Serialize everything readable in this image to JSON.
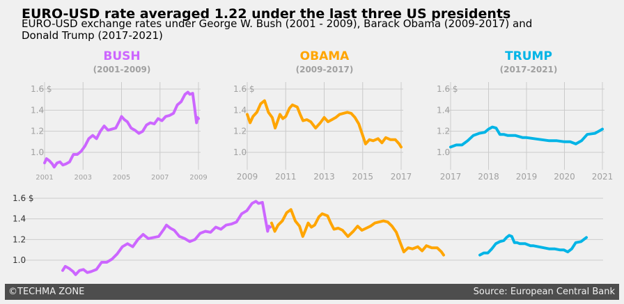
{
  "title": "EURO-USD rate averaged 1.22 under the last three US presidents",
  "subtitle": "EURO-USD exchange rates under George W. Bush (2001 - 2009), Barack Obama (2009-2017) and Donald Trump (2017-2021)",
  "footer": {
    "left": "©TECHMA ZONE",
    "right": "Source: European Central Bank"
  },
  "colors": {
    "bush": "#cc66ff",
    "obama": "#ffa500",
    "trump": "#00b4e6",
    "grid": "#cbcbcb",
    "tick": "#a0a0a0"
  },
  "chart_data": [
    {
      "type": "line",
      "panel": "bush",
      "title": "BUSH",
      "subtitle": "(2001-2009)",
      "xlim": [
        2001,
        2009
      ],
      "ylim": [
        0.8,
        1.68
      ],
      "xticks": [
        "2001",
        "2003",
        "2005",
        "2007",
        "2009"
      ],
      "yticks": [
        "1.0",
        "1.2",
        "1.4",
        "1.6 $"
      ],
      "series": [
        {
          "color": "#cc66ff",
          "x": [
            2001.0,
            2001.1,
            2001.25,
            2001.4,
            2001.5,
            2001.65,
            2001.8,
            2001.95,
            2002.1,
            2002.3,
            2002.5,
            2002.7,
            2002.9,
            2003.1,
            2003.3,
            2003.5,
            2003.7,
            2003.9,
            2004.1,
            2004.3,
            2004.5,
            2004.7,
            2004.9,
            2005.0,
            2005.15,
            2005.3,
            2005.5,
            2005.7,
            2005.9,
            2006.1,
            2006.3,
            2006.5,
            2006.7,
            2006.9,
            2007.1,
            2007.3,
            2007.5,
            2007.7,
            2007.9,
            2008.1,
            2008.3,
            2008.45,
            2008.55,
            2008.7,
            2008.8,
            2008.9,
            2008.95,
            2009.0
          ],
          "y": [
            0.9,
            0.94,
            0.92,
            0.89,
            0.86,
            0.9,
            0.91,
            0.88,
            0.89,
            0.91,
            0.98,
            0.98,
            1.01,
            1.06,
            1.13,
            1.16,
            1.13,
            1.2,
            1.25,
            1.21,
            1.22,
            1.23,
            1.3,
            1.34,
            1.31,
            1.29,
            1.23,
            1.21,
            1.18,
            1.2,
            1.26,
            1.28,
            1.27,
            1.32,
            1.3,
            1.34,
            1.35,
            1.37,
            1.45,
            1.48,
            1.55,
            1.57,
            1.55,
            1.56,
            1.42,
            1.28,
            1.33,
            1.32
          ]
        }
      ]
    },
    {
      "type": "line",
      "panel": "obama",
      "title": "OBAMA",
      "subtitle": "(2009-2017)",
      "xlim": [
        2009,
        2017
      ],
      "ylim": [
        0.8,
        1.68
      ],
      "xticks": [
        "2009",
        "2011",
        "2013",
        "2015",
        "2017"
      ],
      "yticks": [
        "1.0",
        "1.2",
        "1.4",
        "1.6 $"
      ],
      "series": [
        {
          "color": "#ffa500",
          "x": [
            2009.0,
            2009.15,
            2009.3,
            2009.5,
            2009.7,
            2009.9,
            2010.1,
            2010.3,
            2010.45,
            2010.55,
            2010.7,
            2010.85,
            2011.0,
            2011.2,
            2011.35,
            2011.6,
            2011.75,
            2011.9,
            2012.1,
            2012.3,
            2012.55,
            2012.8,
            2013.0,
            2013.2,
            2013.4,
            2013.6,
            2013.8,
            2014.0,
            2014.2,
            2014.4,
            2014.6,
            2014.8,
            2015.0,
            2015.15,
            2015.35,
            2015.55,
            2015.8,
            2016.0,
            2016.2,
            2016.45,
            2016.7,
            2016.9,
            2017.0
          ],
          "y": [
            1.36,
            1.28,
            1.34,
            1.38,
            1.46,
            1.49,
            1.38,
            1.33,
            1.23,
            1.28,
            1.36,
            1.32,
            1.34,
            1.42,
            1.45,
            1.43,
            1.36,
            1.3,
            1.31,
            1.29,
            1.23,
            1.28,
            1.33,
            1.29,
            1.31,
            1.33,
            1.36,
            1.37,
            1.38,
            1.37,
            1.33,
            1.27,
            1.16,
            1.08,
            1.12,
            1.11,
            1.13,
            1.09,
            1.14,
            1.12,
            1.12,
            1.08,
            1.05
          ]
        }
      ]
    },
    {
      "type": "line",
      "panel": "trump",
      "title": "TRUMP",
      "subtitle": "(2017-2021)",
      "xlim": [
        2017,
        2021
      ],
      "ylim": [
        0.8,
        1.68
      ],
      "xticks": [
        "2017",
        "2018",
        "2019",
        "2020",
        "2021"
      ],
      "yticks": [
        "1.0",
        "1.2",
        "1.4",
        "1.6 $"
      ],
      "series": [
        {
          "color": "#00b4e6",
          "x": [
            2017.0,
            2017.15,
            2017.3,
            2017.45,
            2017.6,
            2017.75,
            2017.9,
            2018.0,
            2018.1,
            2018.2,
            2018.3,
            2018.4,
            2018.5,
            2018.7,
            2018.9,
            2019.0,
            2019.2,
            2019.4,
            2019.6,
            2019.8,
            2020.0,
            2020.15,
            2020.3,
            2020.45,
            2020.6,
            2020.8,
            2020.95,
            2021.0
          ],
          "y": [
            1.05,
            1.07,
            1.07,
            1.11,
            1.16,
            1.18,
            1.19,
            1.22,
            1.24,
            1.23,
            1.17,
            1.17,
            1.16,
            1.16,
            1.14,
            1.14,
            1.13,
            1.12,
            1.11,
            1.11,
            1.1,
            1.1,
            1.08,
            1.11,
            1.17,
            1.18,
            1.21,
            1.22
          ]
        }
      ]
    },
    {
      "type": "line",
      "panel": "combined",
      "xlim": [
        2000.1,
        2021.8
      ],
      "ylim": [
        0.8,
        1.68
      ],
      "yticks": [
        "1.0",
        "1.2",
        "1.4",
        "1.6 $"
      ],
      "series_ref": [
        "bush",
        "obama",
        "trump"
      ]
    }
  ]
}
